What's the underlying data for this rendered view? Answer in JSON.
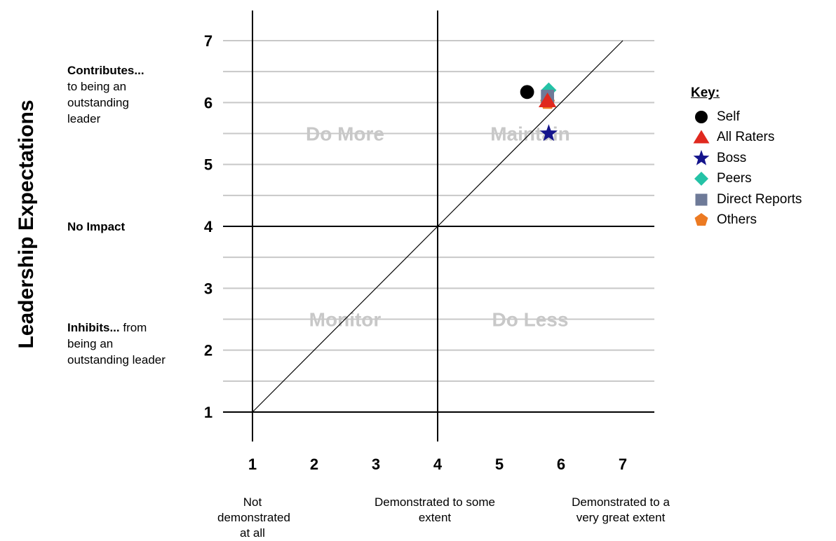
{
  "chart_data": {
    "type": "scatter",
    "ylabel": "Leadership Expectations",
    "xlim": [
      1,
      7
    ],
    "ylim": [
      1,
      7
    ],
    "x_ticks": [
      "1",
      "2",
      "3",
      "4",
      "5",
      "6",
      "7"
    ],
    "y_ticks": [
      "1",
      "2",
      "3",
      "4",
      "5",
      "6",
      "7"
    ],
    "quadrants": {
      "top_left": "Do More",
      "top_right": "Maintain",
      "bottom_left": "Monitor",
      "bottom_right": "Do Less"
    },
    "y_descriptions": {
      "top_bold": "Contributes...",
      "top_rest": "to being an outstanding leader",
      "middle": "No Impact",
      "bottom_bold": "Inhibits...",
      "bottom_rest": "from being an outstanding leader"
    },
    "x_descriptions": {
      "low": "Not demonstrated at all",
      "mid": "Demonstrated to some extent",
      "high": "Demonstrated to a very great extent"
    },
    "diagonal": {
      "from": [
        1,
        1
      ],
      "to": [
        7,
        7
      ]
    },
    "key_title": "Key:",
    "series": [
      {
        "name": "Self",
        "marker": "circle",
        "color": "#000000",
        "x": 5.45,
        "y": 6.17
      },
      {
        "name": "All Raters",
        "marker": "triangle",
        "color": "#e0291f",
        "x": 5.78,
        "y": 6.03
      },
      {
        "name": "Boss",
        "marker": "star",
        "color": "#14148c",
        "x": 5.8,
        "y": 5.5
      },
      {
        "name": "Peers",
        "marker": "diamond",
        "color": "#24c2a6",
        "x": 5.8,
        "y": 6.2
      },
      {
        "name": "Direct Reports",
        "marker": "square",
        "color": "#6e7a98",
        "x": 5.78,
        "y": 6.1
      },
      {
        "name": "Others",
        "marker": "pentagon",
        "color": "#ec7a22",
        "x": 5.78,
        "y": 6.0
      }
    ]
  }
}
